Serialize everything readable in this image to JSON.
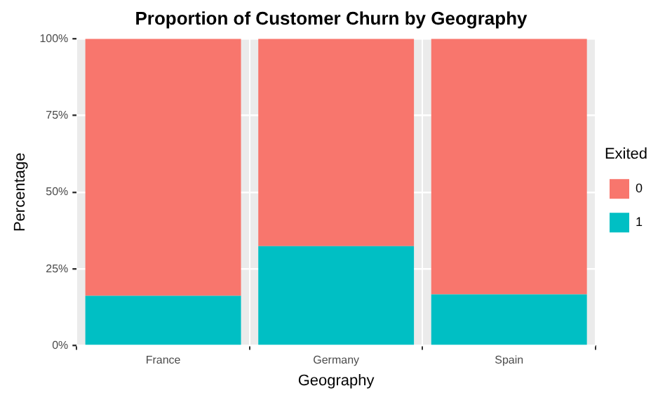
{
  "chart_data": {
    "type": "bar",
    "title": "Proportion of Customer Churn by Geography",
    "xlabel": "Geography",
    "ylabel": "Percentage",
    "legend_title": "Exited",
    "categories": [
      "France",
      "Germany",
      "Spain"
    ],
    "stacked": true,
    "legend": "right",
    "grid": true,
    "series": [
      {
        "name": "1",
        "color": "#00bfc4",
        "values": [
          16.2,
          32.4,
          16.7
        ]
      },
      {
        "name": "0",
        "color": "#f8766d",
        "values": [
          83.8,
          67.6,
          83.3
        ]
      }
    ],
    "ylim": [
      0,
      100
    ],
    "yticks": [
      {
        "value": 0,
        "label": "0%"
      },
      {
        "value": 25,
        "label": "25%"
      },
      {
        "value": 50,
        "label": "50%"
      },
      {
        "value": 75,
        "label": "75%"
      },
      {
        "value": 100,
        "label": "100%"
      }
    ]
  }
}
